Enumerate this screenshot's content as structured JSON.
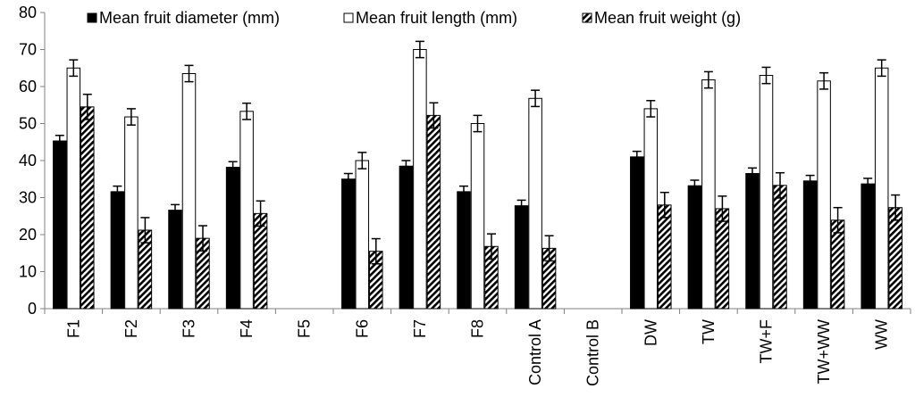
{
  "chart_data": {
    "type": "bar",
    "title": "",
    "xlabel": "",
    "ylabel": "",
    "ylim": [
      0,
      80
    ],
    "yticks": [
      0,
      10,
      20,
      30,
      40,
      50,
      60,
      70,
      80
    ],
    "grid": false,
    "legend_position": "top",
    "error_bars": true,
    "categories": [
      "F1",
      "F2",
      "F3",
      "F4",
      "F5",
      "F6",
      "F7",
      "F8",
      "Control A",
      "Control B",
      "DW",
      "TW",
      "TW+F",
      "TW+WW",
      "WW"
    ],
    "series": [
      {
        "name": "Mean fruit diameter (mm)",
        "pattern": "solid",
        "color": "#000000",
        "values": [
          45.3,
          31.6,
          26.6,
          38.2,
          null,
          35,
          38.5,
          31.6,
          27.8,
          null,
          41,
          33.2,
          36.5,
          34.5,
          33.7
        ],
        "errors": [
          1.5,
          1.5,
          1.5,
          1.5,
          null,
          1.5,
          1.5,
          1.5,
          1.5,
          null,
          1.5,
          1.5,
          1.5,
          1.5,
          1.5
        ]
      },
      {
        "name": "Mean fruit length (mm)",
        "pattern": "open",
        "color": "#ffffff",
        "values": [
          65,
          51.8,
          63.5,
          53.3,
          null,
          40,
          70,
          50,
          56.8,
          null,
          54,
          61.8,
          63,
          61.5,
          65
        ],
        "errors": [
          2.2,
          2.2,
          2.2,
          2.2,
          null,
          2.2,
          2.2,
          2.2,
          2.2,
          null,
          2.2,
          2.2,
          2.2,
          2.2,
          2.2
        ]
      },
      {
        "name": "Mean fruit weight (g)",
        "pattern": "diagonal-hatch",
        "color": "#000000",
        "values": [
          54.5,
          21.2,
          19,
          25.7,
          null,
          15.5,
          52.2,
          16.8,
          16.3,
          null,
          28,
          27,
          33.3,
          23.9,
          27.3
        ],
        "errors": [
          3.4,
          3.4,
          3.4,
          3.4,
          null,
          3.4,
          3.4,
          3.4,
          3.4,
          null,
          3.4,
          3.4,
          3.4,
          3.4,
          3.4
        ]
      }
    ]
  }
}
